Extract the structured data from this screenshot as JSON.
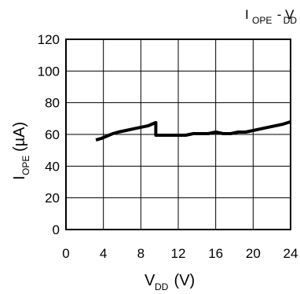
{
  "chart_data": {
    "type": "line",
    "title": {
      "main": "I",
      "main_sub": "OPE",
      "sep": " - V",
      "sep_sub": "DD"
    },
    "xlabel": {
      "main": "V",
      "sub": "DD",
      "unit": " (V)"
    },
    "ylabel": {
      "main": "I",
      "sub": "OPE",
      "unit": "(µA)"
    },
    "xlim": [
      0,
      24
    ],
    "ylim": [
      0,
      120
    ],
    "x_ticks": [
      "0",
      "4",
      "8",
      "12",
      "16",
      "20",
      "24"
    ],
    "y_ticks": [
      "0",
      "20",
      "40",
      "60",
      "80",
      "100",
      "120"
    ],
    "x_tick_values": [
      0,
      4,
      8,
      12,
      16,
      20,
      24
    ],
    "y_tick_values": [
      0,
      20,
      40,
      60,
      80,
      100,
      120
    ],
    "grid": true,
    "series": [
      {
        "color": "#000000",
        "points": [
          [
            3.2,
            56.5
          ],
          [
            3.8,
            57.5
          ],
          [
            4.4,
            59.0
          ],
          [
            5.0,
            60.5
          ],
          [
            5.6,
            61.5
          ],
          [
            6.4,
            62.5
          ],
          [
            7.2,
            63.5
          ],
          [
            8.0,
            64.5
          ],
          [
            8.8,
            65.5
          ],
          [
            9.6,
            67.5
          ],
          [
            9.6,
            59.5
          ],
          [
            10.4,
            59.5
          ],
          [
            11.2,
            59.5
          ],
          [
            12.0,
            59.5
          ],
          [
            12.8,
            59.5
          ],
          [
            13.6,
            60.5
          ],
          [
            14.4,
            60.5
          ],
          [
            15.2,
            60.5
          ],
          [
            16.0,
            61.5
          ],
          [
            16.8,
            60.5
          ],
          [
            17.6,
            60.5
          ],
          [
            18.4,
            61.5
          ],
          [
            19.2,
            61.5
          ],
          [
            20.0,
            62.5
          ],
          [
            20.8,
            63.5
          ],
          [
            21.6,
            64.5
          ],
          [
            22.4,
            65.5
          ],
          [
            23.2,
            66.5
          ],
          [
            24.0,
            68.0
          ]
        ]
      }
    ]
  }
}
